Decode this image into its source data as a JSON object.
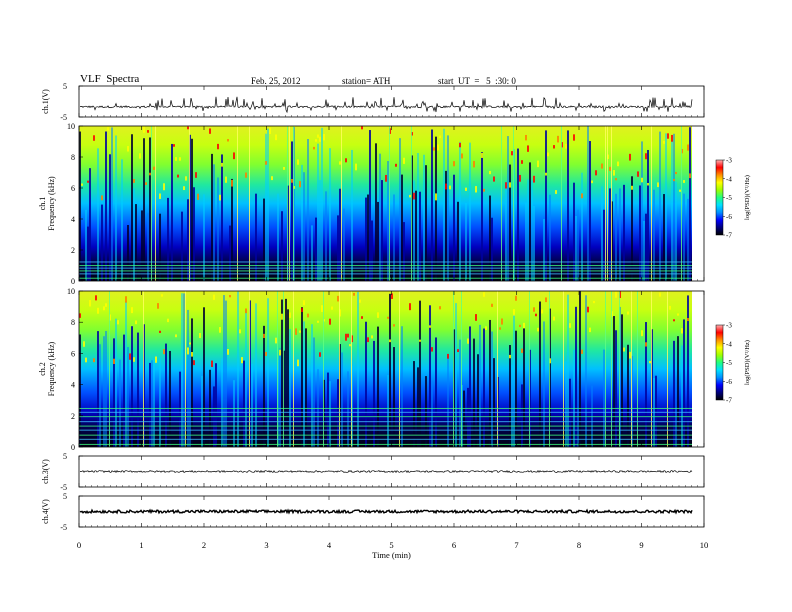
{
  "header": {
    "title": "VLF  Spectra",
    "date": "Feb. 25, 2012",
    "station": "station= ATH",
    "start": "start  UT  =   5  :30: 0"
  },
  "colorbar_label": "log(PSD)(V²/Hz)",
  "colors": {
    "scale": [
      "#000000",
      "#00007a",
      "#0000ff",
      "#0090ff",
      "#00e0ff",
      "#20ff80",
      "#9fff00",
      "#ffff00",
      "#ff9000",
      "#ff0000",
      "#ffb0b0"
    ]
  },
  "chart_data": [
    {
      "type": "line",
      "title": "ch.1(V)",
      "ylabel": "ch.1(V)",
      "ylim": [
        -5,
        5
      ],
      "yticks": [
        "5",
        "-5"
      ],
      "xlim": [
        0,
        10
      ],
      "baseline": -1.7,
      "spike_amplitude": 2.5
    },
    {
      "type": "heatmap",
      "ylabel": "ch.1\nFrequency (kHz)",
      "ylim": [
        0,
        10
      ],
      "yticks": [
        "0",
        "2",
        "4",
        "6",
        "8",
        "10"
      ],
      "xlim": [
        0,
        9.8
      ],
      "colorbar": {
        "ticks": [
          "-3",
          "-4",
          "-5",
          "-6",
          "-7"
        ],
        "range": [
          -7,
          -3
        ],
        "label": "log(PSD)(V²/Hz)"
      }
    },
    {
      "type": "heatmap",
      "ylabel": "ch.2\nFrequency (kHz)",
      "ylim": [
        0,
        10
      ],
      "yticks": [
        "0",
        "2",
        "4",
        "6",
        "8",
        "10"
      ],
      "xlim": [
        0,
        9.8
      ],
      "colorbar": {
        "ticks": [
          "-3",
          "-4",
          "-5",
          "-6",
          "-7"
        ],
        "range": [
          -7,
          -3
        ],
        "label": "log(PSD)(V²/Hz)"
      }
    },
    {
      "type": "line",
      "ylabel": "ch.3(V)",
      "ylim": [
        -5,
        5
      ],
      "yticks": [
        "5",
        "-5"
      ],
      "xlim": [
        0,
        10
      ],
      "baseline": 0.0
    },
    {
      "type": "line",
      "ylabel": "ch.4(V)",
      "ylim": [
        -5,
        5
      ],
      "yticks": [
        "5",
        "-5"
      ],
      "xlim": [
        0,
        10
      ],
      "baseline": 0.0
    }
  ],
  "xaxis": {
    "label": "Time  (min)",
    "ticks": [
      "0",
      "1",
      "2",
      "3",
      "4",
      "5",
      "6",
      "7",
      "8",
      "9",
      "10"
    ]
  }
}
